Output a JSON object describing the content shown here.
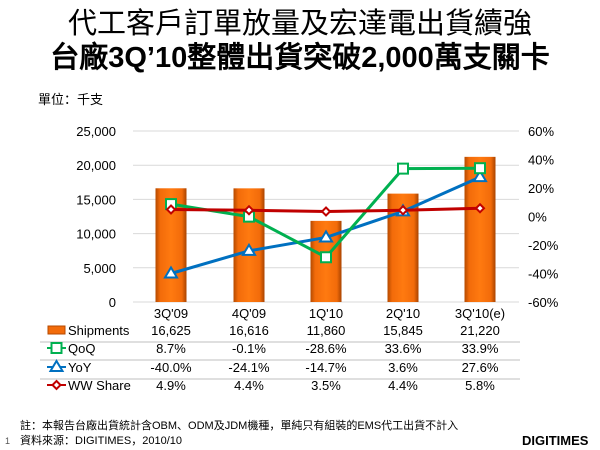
{
  "title_line1": "代工客戶訂單放量及宏達電出貨續強",
  "title_line2": "台廠3Q’10整體出貨突破2,000萬支關卡",
  "unit": "單位：千支",
  "note": "註：本報告台廠出貨統計含OBM、ODM及JDM機種，單純只有組裝的EMS代工出貨不計入",
  "source": "資料來源：DIGITIMES，2010/10",
  "page_number": "1",
  "logo": "DIGITIMES",
  "chart_data": {
    "type": "bar+line",
    "categories": [
      "3Q'09",
      "4Q'09",
      "1Q'10",
      "2Q'10",
      "3Q'10(e)"
    ],
    "left_axis": {
      "range": [
        0,
        25000
      ],
      "ticks": [
        "0",
        "5,000",
        "10,000",
        "15,000",
        "20,000",
        "25,000"
      ]
    },
    "right_axis": {
      "range": [
        -60,
        60
      ],
      "ticks": [
        "-60%",
        "-40%",
        "-20%",
        "0%",
        "20%",
        "40%",
        "60%"
      ]
    },
    "grid": true,
    "series": [
      {
        "name": "Shipments",
        "type": "bar",
        "axis": "left",
        "color": "#F26B0A",
        "values": [
          16625,
          16616,
          11860,
          15845,
          21220
        ],
        "labels": [
          "16,625",
          "16,616",
          "11,860",
          "15,845",
          "21,220"
        ]
      },
      {
        "name": "QoQ",
        "type": "line",
        "axis": "right",
        "marker": "square",
        "color": "#00B050",
        "values": [
          8.7,
          -0.1,
          -28.6,
          33.6,
          33.9
        ],
        "labels": [
          "8.7%",
          "-0.1%",
          "-28.6%",
          "33.6%",
          "33.9%"
        ]
      },
      {
        "name": "YoY",
        "type": "line",
        "axis": "right",
        "marker": "triangle",
        "color": "#0070C0",
        "values": [
          -40.0,
          -24.1,
          -14.7,
          3.6,
          27.6
        ],
        "labels": [
          "-40.0%",
          "-24.1%",
          "-14.7%",
          "3.6%",
          "27.6%"
        ]
      },
      {
        "name": "WW Share",
        "type": "line",
        "axis": "right",
        "marker": "diamond",
        "color": "#C00000",
        "values": [
          4.9,
          4.4,
          3.5,
          4.4,
          5.8
        ],
        "labels": [
          "4.9%",
          "4.4%",
          "3.5%",
          "4.4%",
          "5.8%"
        ]
      }
    ]
  }
}
